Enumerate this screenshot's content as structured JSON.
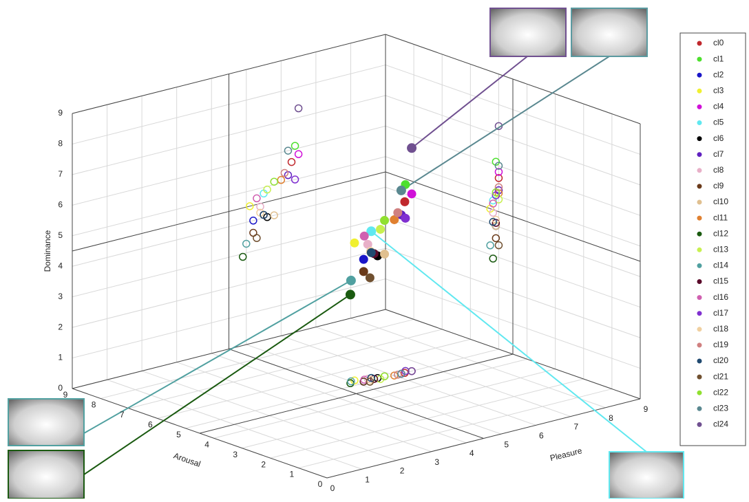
{
  "chart_data": {
    "type": "scatter3d",
    "xlabel": "Pleasure",
    "ylabel": "Arousal",
    "zlabel": "Dominance",
    "xlim": [
      0,
      9
    ],
    "ylim": [
      0,
      9
    ],
    "zlim": [
      0,
      9
    ],
    "xticks": [
      0,
      1,
      2,
      3,
      4,
      5,
      6,
      7,
      8,
      9
    ],
    "yticks": [
      0,
      1,
      2,
      3,
      4,
      5,
      6,
      7,
      8,
      9
    ],
    "zticks": [
      0,
      1,
      2,
      3,
      4,
      5,
      6,
      7,
      8,
      9
    ],
    "grid": true,
    "series": [
      {
        "name": "cl0",
        "color": "#c0282d",
        "x": [
          6.3
        ],
        "y": [
          5.0
        ],
        "z": [
          5.6
        ]
      },
      {
        "name": "cl1",
        "color": "#4de02e",
        "x": [
          6.4
        ],
        "y": [
          5.1
        ],
        "z": [
          6.1
        ]
      },
      {
        "name": "cl2",
        "color": "#1a16c8",
        "x": [
          5.2
        ],
        "y": [
          5.1
        ],
        "z": [
          4.0
        ]
      },
      {
        "name": "cl3",
        "color": "#f0f030",
        "x": [
          5.1
        ],
        "y": [
          5.3
        ],
        "z": [
          4.5
        ]
      },
      {
        "name": "cl4",
        "color": "#d010d8",
        "x": [
          6.5
        ],
        "y": [
          5.0
        ],
        "z": [
          5.8
        ]
      },
      {
        "name": "cl5",
        "color": "#60e8f0",
        "x": [
          5.5
        ],
        "y": [
          5.2
        ],
        "z": [
          4.8
        ]
      },
      {
        "name": "cl6",
        "color": "#000000",
        "x": [
          5.6
        ],
        "y": [
          5.1
        ],
        "z": [
          4.0
        ]
      },
      {
        "name": "cl7",
        "color": "#6020c0",
        "x": [
          6.2
        ],
        "y": [
          5.0
        ],
        "z": [
          5.2
        ]
      },
      {
        "name": "cl8",
        "color": "#e8b0c8",
        "x": [
          5.4
        ],
        "y": [
          5.2
        ],
        "z": [
          4.4
        ]
      },
      {
        "name": "cl9",
        "color": "#6a3a1a",
        "x": [
          5.2
        ],
        "y": [
          5.1
        ],
        "z": [
          3.6
        ]
      },
      {
        "name": "cl10",
        "color": "#e0c090",
        "x": [
          5.8
        ],
        "y": [
          5.1
        ],
        "z": [
          4.0
        ]
      },
      {
        "name": "cl11",
        "color": "#e08030",
        "x": [
          6.0
        ],
        "y": [
          5.0
        ],
        "z": [
          5.1
        ]
      },
      {
        "name": "cl12",
        "color": "#1a5a10",
        "x": [
          4.9
        ],
        "y": [
          5.2
        ],
        "z": [
          2.9
        ]
      },
      {
        "name": "cl13",
        "color": "#c8f050",
        "x": [
          5.6
        ],
        "y": [
          5.0
        ],
        "z": [
          4.9
        ]
      },
      {
        "name": "cl14",
        "color": "#50a0a0",
        "x": [
          5.0
        ],
        "y": [
          5.3
        ],
        "z": [
          3.3
        ]
      },
      {
        "name": "cl15",
        "color": "#5a0a2a",
        "x": [
          5.5
        ],
        "y": [
          5.1
        ],
        "z": [
          4.1
        ]
      },
      {
        "name": "cl16",
        "color": "#d060b0",
        "x": [
          5.3
        ],
        "y": [
          5.2
        ],
        "z": [
          4.7
        ]
      },
      {
        "name": "cl17",
        "color": "#8030d0",
        "x": [
          6.4
        ],
        "y": [
          5.1
        ],
        "z": [
          5.0
        ]
      },
      {
        "name": "cl18",
        "color": "#f0d0a0",
        "x": [
          5.4
        ],
        "y": [
          5.1
        ],
        "z": [
          4.2
        ]
      },
      {
        "name": "cl19",
        "color": "#d08080",
        "x": [
          6.1
        ],
        "y": [
          5.0
        ],
        "z": [
          5.3
        ]
      },
      {
        "name": "cl20",
        "color": "#204a70",
        "x": [
          5.5
        ],
        "y": [
          5.2
        ],
        "z": [
          4.1
        ]
      },
      {
        "name": "cl21",
        "color": "#705030",
        "x": [
          5.3
        ],
        "y": [
          5.0
        ],
        "z": [
          3.4
        ]
      },
      {
        "name": "cl22",
        "color": "#90e030",
        "x": [
          5.8
        ],
        "y": [
          5.1
        ],
        "z": [
          5.1
        ]
      },
      {
        "name": "cl23",
        "color": "#5a8890",
        "x": [
          6.2
        ],
        "y": [
          5.0
        ],
        "z": [
          6.0
        ]
      },
      {
        "name": "cl24",
        "color": "#705090",
        "x": [
          6.5
        ],
        "y": [
          5.0
        ],
        "z": [
          7.3
        ]
      }
    ]
  }
}
